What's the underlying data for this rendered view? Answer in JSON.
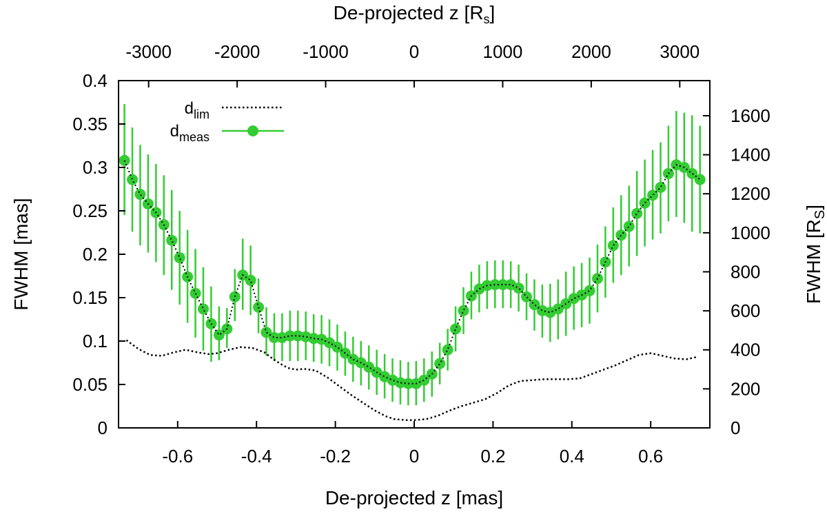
{
  "chart_data": {
    "type": "scatter",
    "xlabel": "De-projected z [mas]",
    "x2label": "De-projected z [R",
    "x2label_sub": "s",
    "x2label_end": "]",
    "ylabel": "FWHM [mas]",
    "y2label": "FWHM [R",
    "y2label_sub": "S",
    "y2label_end": "]",
    "xlim": [
      -0.75,
      0.75
    ],
    "ylim": [
      0,
      0.4
    ],
    "x2lim": [
      -3340,
      3340
    ],
    "y2lim": [
      0,
      1780
    ],
    "x_ticks": [
      "-0.6",
      "-0.4",
      "-0.2",
      "0",
      "0.2",
      "0.4",
      "0.6"
    ],
    "y_ticks": [
      "0",
      "0.05",
      "0.1",
      "0.15",
      "0.2",
      "0.25",
      "0.3",
      "0.35",
      "0.4"
    ],
    "x2_ticks": [
      "-3000",
      "-2000",
      "-1000",
      "0",
      "1000",
      "2000",
      "3000"
    ],
    "y2_ticks": [
      "0",
      "200",
      "400",
      "600",
      "800",
      "1000",
      "1200",
      "1400",
      "1600"
    ],
    "legend": {
      "placement": "top-left",
      "entries": [
        {
          "label": "d",
          "sub": "lim",
          "style": "dotted-line"
        },
        {
          "label": "d",
          "sub": "meas",
          "style": "line-point"
        }
      ]
    },
    "colors": {
      "meas": "#33cc33",
      "lim": "#000000"
    },
    "series": [
      {
        "label": "lim",
        "x": [
          -0.73,
          -0.7,
          -0.67,
          -0.64,
          -0.61,
          -0.58,
          -0.55,
          -0.52,
          -0.5,
          -0.47,
          -0.44,
          -0.41,
          -0.38,
          -0.36,
          -0.34,
          -0.32,
          -0.3,
          -0.28,
          -0.25,
          -0.22,
          -0.19,
          -0.16,
          -0.13,
          -0.1,
          -0.07,
          -0.05,
          -0.02,
          0.0,
          0.03,
          0.06,
          0.09,
          0.12,
          0.15,
          0.18,
          0.21,
          0.24,
          0.27,
          0.3,
          0.33,
          0.36,
          0.39,
          0.42,
          0.45,
          0.48,
          0.51,
          0.54,
          0.57,
          0.6,
          0.63,
          0.66,
          0.69,
          0.72
        ],
        "y": [
          0.101,
          0.091,
          0.084,
          0.083,
          0.087,
          0.09,
          0.087,
          0.085,
          0.086,
          0.09,
          0.093,
          0.092,
          0.087,
          0.08,
          0.074,
          0.069,
          0.067,
          0.068,
          0.066,
          0.058,
          0.048,
          0.038,
          0.029,
          0.02,
          0.013,
          0.01,
          0.009,
          0.009,
          0.01,
          0.014,
          0.02,
          0.025,
          0.029,
          0.033,
          0.04,
          0.049,
          0.054,
          0.055,
          0.056,
          0.056,
          0.056,
          0.057,
          0.062,
          0.067,
          0.072,
          0.078,
          0.084,
          0.086,
          0.083,
          0.08,
          0.079,
          0.082
        ]
      },
      {
        "label": "meas",
        "x": [
          -0.735,
          -0.715,
          -0.695,
          -0.675,
          -0.655,
          -0.635,
          -0.615,
          -0.595,
          -0.575,
          -0.555,
          -0.535,
          -0.515,
          -0.495,
          -0.475,
          -0.455,
          -0.435,
          -0.415,
          -0.395,
          -0.375,
          -0.355,
          -0.335,
          -0.315,
          -0.295,
          -0.275,
          -0.255,
          -0.235,
          -0.215,
          -0.195,
          -0.175,
          -0.155,
          -0.135,
          -0.115,
          -0.095,
          -0.075,
          -0.055,
          -0.035,
          -0.015,
          0.005,
          0.025,
          0.045,
          0.065,
          0.085,
          0.105,
          0.125,
          0.145,
          0.165,
          0.185,
          0.205,
          0.225,
          0.245,
          0.265,
          0.285,
          0.305,
          0.325,
          0.345,
          0.365,
          0.385,
          0.405,
          0.425,
          0.445,
          0.465,
          0.485,
          0.505,
          0.525,
          0.545,
          0.565,
          0.585,
          0.605,
          0.625,
          0.645,
          0.665,
          0.685,
          0.705,
          0.725
        ],
        "y": [
          0.308,
          0.286,
          0.269,
          0.258,
          0.248,
          0.234,
          0.216,
          0.196,
          0.174,
          0.155,
          0.137,
          0.12,
          0.107,
          0.114,
          0.151,
          0.176,
          0.17,
          0.139,
          0.11,
          0.104,
          0.104,
          0.106,
          0.106,
          0.105,
          0.103,
          0.102,
          0.098,
          0.093,
          0.086,
          0.079,
          0.075,
          0.07,
          0.064,
          0.059,
          0.055,
          0.052,
          0.051,
          0.051,
          0.055,
          0.062,
          0.074,
          0.09,
          0.114,
          0.135,
          0.152,
          0.16,
          0.164,
          0.165,
          0.165,
          0.165,
          0.161,
          0.151,
          0.142,
          0.135,
          0.133,
          0.137,
          0.143,
          0.149,
          0.153,
          0.158,
          0.172,
          0.191,
          0.21,
          0.222,
          0.232,
          0.247,
          0.259,
          0.268,
          0.277,
          0.293,
          0.303,
          0.3,
          0.293,
          0.286
        ]
      }
    ],
    "error_bars": {
      "label": "meas",
      "y_lower": [
        0.245,
        0.226,
        0.21,
        0.202,
        0.191,
        0.176,
        0.159,
        0.142,
        0.121,
        0.104,
        0.089,
        0.076,
        0.078,
        0.092,
        0.123,
        0.136,
        0.13,
        0.109,
        0.083,
        0.077,
        0.077,
        0.077,
        0.077,
        0.078,
        0.076,
        0.074,
        0.071,
        0.066,
        0.06,
        0.053,
        0.049,
        0.044,
        0.038,
        0.034,
        0.03,
        0.027,
        0.026,
        0.026,
        0.03,
        0.036,
        0.05,
        0.066,
        0.088,
        0.108,
        0.125,
        0.133,
        0.137,
        0.138,
        0.138,
        0.138,
        0.134,
        0.124,
        0.112,
        0.104,
        0.099,
        0.102,
        0.106,
        0.113,
        0.116,
        0.12,
        0.133,
        0.15,
        0.167,
        0.176,
        0.186,
        0.198,
        0.209,
        0.217,
        0.224,
        0.238,
        0.243,
        0.236,
        0.226,
        0.224
      ],
      "y_upper": [
        0.373,
        0.346,
        0.326,
        0.315,
        0.304,
        0.291,
        0.274,
        0.25,
        0.228,
        0.206,
        0.185,
        0.163,
        0.14,
        0.138,
        0.183,
        0.218,
        0.21,
        0.172,
        0.139,
        0.132,
        0.132,
        0.135,
        0.135,
        0.134,
        0.131,
        0.13,
        0.125,
        0.119,
        0.111,
        0.105,
        0.1,
        0.095,
        0.09,
        0.085,
        0.08,
        0.078,
        0.076,
        0.077,
        0.08,
        0.088,
        0.098,
        0.114,
        0.14,
        0.162,
        0.18,
        0.188,
        0.192,
        0.193,
        0.193,
        0.192,
        0.188,
        0.178,
        0.171,
        0.165,
        0.166,
        0.171,
        0.18,
        0.186,
        0.19,
        0.196,
        0.211,
        0.232,
        0.254,
        0.268,
        0.279,
        0.296,
        0.309,
        0.32,
        0.329,
        0.348,
        0.365,
        0.363,
        0.36,
        0.348
      ]
    }
  }
}
